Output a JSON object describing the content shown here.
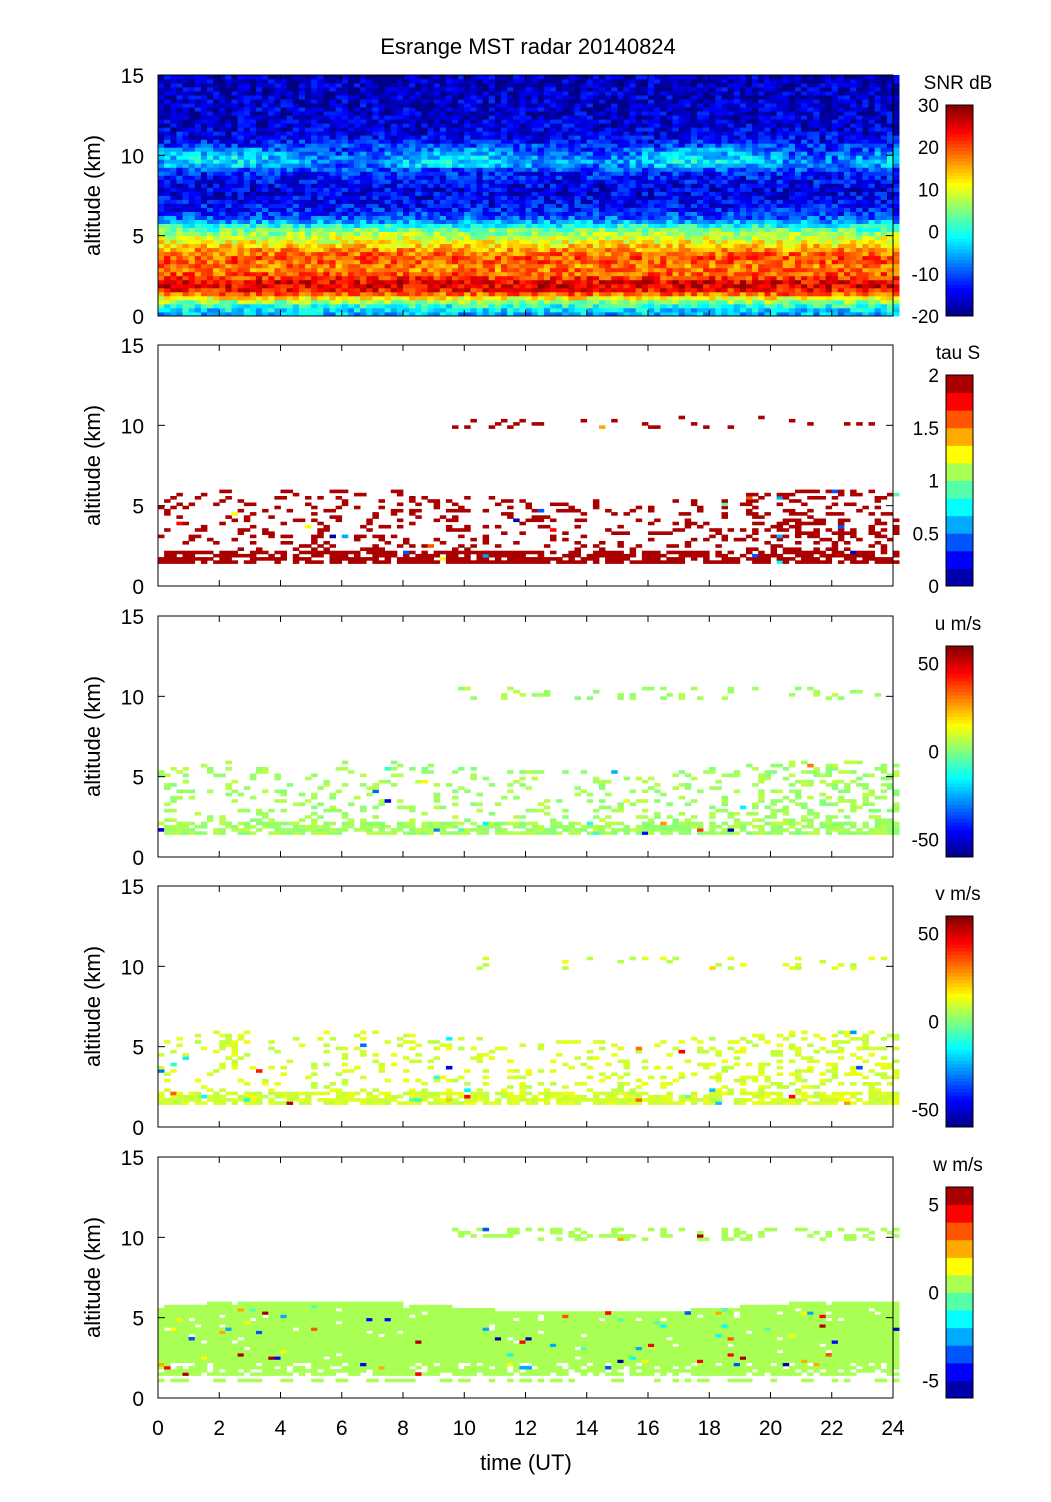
{
  "chart_data": {
    "type": "heatmap",
    "title": "Esrange MST radar 20140824",
    "xlabel": "time (UT)",
    "xlim": [
      0,
      24
    ],
    "xticks": [
      0,
      2,
      4,
      6,
      8,
      10,
      12,
      14,
      16,
      18,
      20,
      22,
      24
    ],
    "panels": [
      {
        "name": "snr",
        "ylabel": "altitude (km)",
        "ylim": [
          0,
          15
        ],
        "yticks": [
          0,
          5,
          10,
          15
        ],
        "colorbar_label": "SNR dB",
        "clim": [
          -20,
          30
        ],
        "cticks": [
          -20,
          -10,
          0,
          10,
          20,
          30
        ],
        "levels": 0,
        "coverage": "full",
        "profile_alt_km": [
          0,
          0.5,
          1,
          1.5,
          2,
          2.5,
          3,
          3.5,
          4,
          4.5,
          5,
          5.5,
          6,
          6.5,
          7,
          8,
          9,
          9.5,
          10,
          11,
          12,
          15
        ],
        "profile_value": [
          -6,
          -2,
          8,
          22,
          26,
          20,
          17,
          20,
          18,
          12,
          8,
          2,
          -8,
          -12,
          -14,
          -15,
          -12,
          -4,
          -6,
          -14,
          -16,
          -17
        ]
      },
      {
        "name": "tau",
        "ylabel": "altitude (km)",
        "ylim": [
          0,
          15
        ],
        "yticks": [
          0,
          5,
          10,
          15
        ],
        "colorbar_label": "tau S",
        "clim": [
          0,
          2
        ],
        "cticks": [
          0,
          0.5,
          1,
          1.5,
          2
        ],
        "levels": 12,
        "coverage": "sparse",
        "typical_value": 2
      },
      {
        "name": "u",
        "ylabel": "altitude (km)",
        "ylim": [
          0,
          15
        ],
        "yticks": [
          0,
          5,
          10,
          15
        ],
        "colorbar_label": "u m/s",
        "clim": [
          -60,
          60
        ],
        "cticks": [
          -50,
          0,
          50
        ],
        "levels": 0,
        "coverage": "sparse",
        "typical_value": 4
      },
      {
        "name": "v",
        "ylabel": "altitude (km)",
        "ylim": [
          0,
          15
        ],
        "yticks": [
          0,
          5,
          10,
          15
        ],
        "colorbar_label": "v m/s",
        "clim": [
          -60,
          60
        ],
        "cticks": [
          -50,
          0,
          50
        ],
        "levels": 0,
        "coverage": "sparse",
        "typical_value": 10
      },
      {
        "name": "w",
        "ylabel": "altitude (km)",
        "ylim": [
          0,
          15
        ],
        "yticks": [
          0,
          5,
          10,
          15
        ],
        "colorbar_label": "w m/s",
        "clim": [
          -6,
          6
        ],
        "cticks": [
          -5,
          0,
          5
        ],
        "levels": 12,
        "coverage": "dense-lower",
        "typical_value": 0.5
      }
    ]
  }
}
